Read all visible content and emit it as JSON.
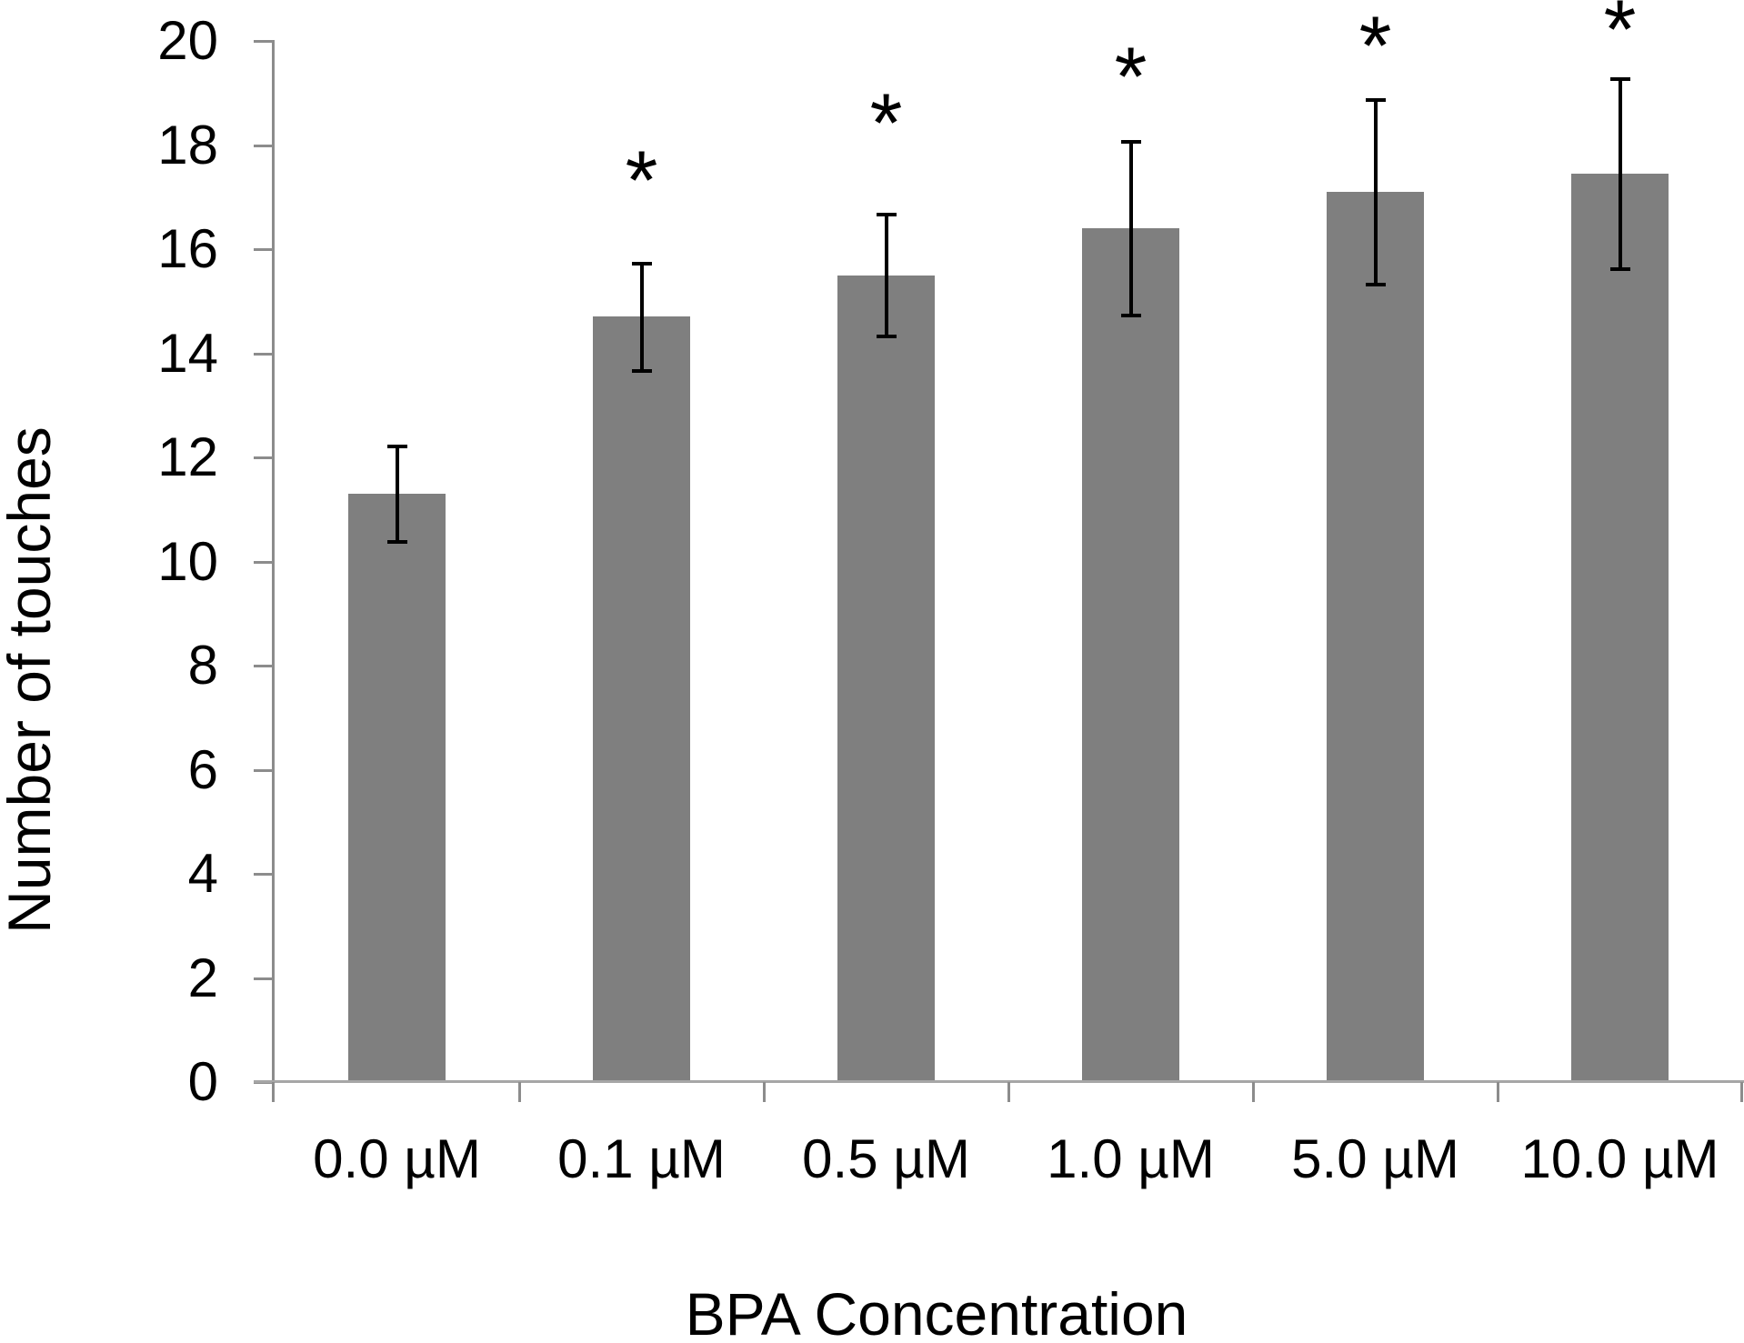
{
  "chart_data": {
    "type": "bar",
    "title": "",
    "xlabel": "BPA Concentration",
    "ylabel": "Number of touches",
    "categories": [
      "0.0 µM",
      "0.1 µM",
      "0.5 µM",
      "1.0 µM",
      "5.0 µM",
      "10.0 µM"
    ],
    "values": [
      11.3,
      14.7,
      15.5,
      16.4,
      17.1,
      17.45
    ],
    "error_bars": [
      0.95,
      1.05,
      1.2,
      1.7,
      1.8,
      1.85
    ],
    "significance": [
      {
        "index": 1,
        "marker": "*",
        "y_value": 17.6
      },
      {
        "index": 2,
        "marker": "*",
        "y_value": 18.7
      },
      {
        "index": 3,
        "marker": "*",
        "y_value": 19.6
      },
      {
        "index": 4,
        "marker": "*",
        "y_value": 20.2
      },
      {
        "index": 5,
        "marker": "*",
        "y_value": 20.5
      }
    ],
    "ylim": [
      0,
      20
    ],
    "yticks": [
      0,
      2,
      4,
      6,
      8,
      10,
      12,
      14,
      16,
      18,
      20
    ],
    "grid": false,
    "legend": false,
    "colors": {
      "bar_fill": "#7F7F7F",
      "y_axis_line": "#8C8C8C",
      "x_axis_line": "#A6A6A6",
      "tick_mark": "#8C8C8C",
      "error_bar": "#000000",
      "text": "#000000",
      "background": "#FFFFFF"
    }
  }
}
